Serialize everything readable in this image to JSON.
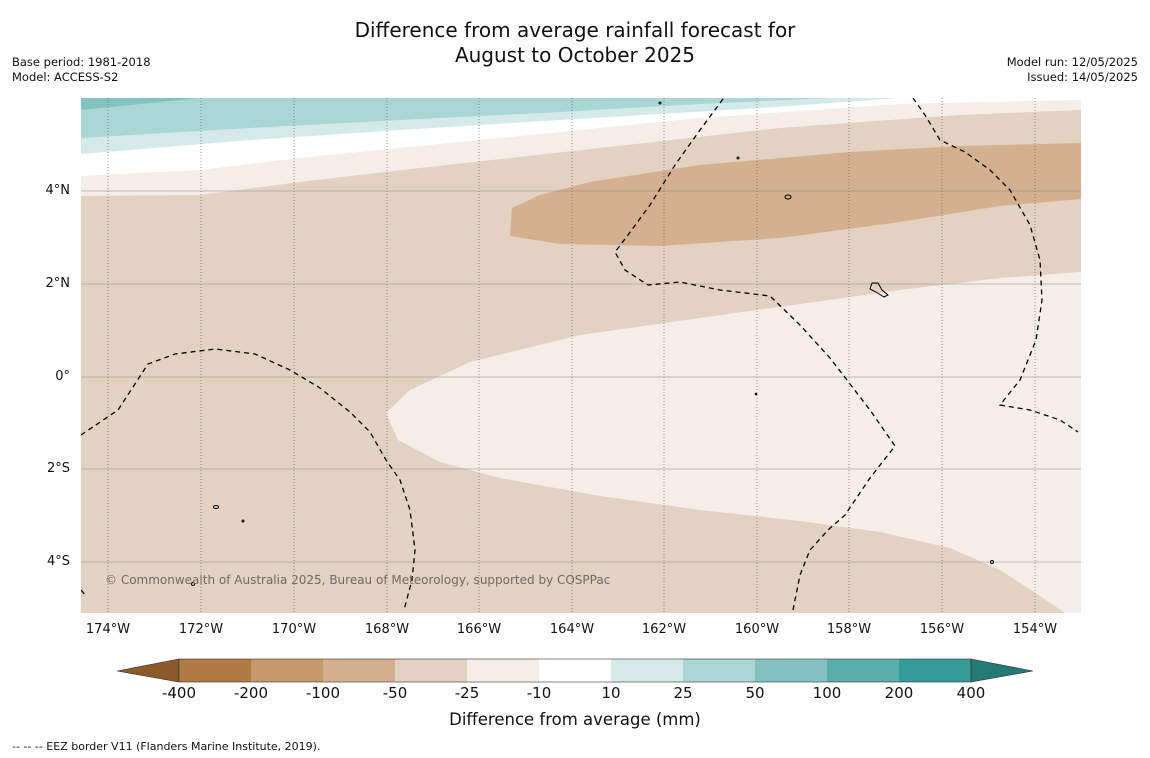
{
  "title_line1": "Difference from average rainfall forecast for",
  "title_line2": "August to October 2025",
  "base_period": "Base period: 1981-2018",
  "model": "Model: ACCESS-S2",
  "model_run": "Model run: 12/05/2025",
  "issued": "Issued: 14/05/2025",
  "copyright": "© Commonwealth of Australia 2025, Bureau of Meteorology, supported by COSPPac",
  "lat_labels": [
    "4°N",
    "2°N",
    "0°",
    "2°S",
    "4°S"
  ],
  "lon_labels": [
    "174°W",
    "172°W",
    "170°W",
    "168°W",
    "166°W",
    "164°W",
    "162°W",
    "160°W",
    "158°W",
    "156°W",
    "154°W"
  ],
  "colorbar": {
    "title": "Difference from average (mm)",
    "ticks": [
      "-400",
      "-200",
      "-100",
      "-50",
      "-25",
      "-10",
      "10",
      "25",
      "50",
      "100",
      "200",
      "400"
    ],
    "colors": [
      "#8a5a2b",
      "#b07a45",
      "#c49a6c",
      "#d4b08f",
      "#e3d1c1",
      "#f4ede8",
      "#ffffff",
      "#d4eae8",
      "#aad6d5",
      "#82c2c0",
      "#5aaeac",
      "#349b98",
      "#237a77"
    ]
  },
  "footnote": "--  --  -- EEZ border V11 (Flanders Marine Institute, 2019)."
}
